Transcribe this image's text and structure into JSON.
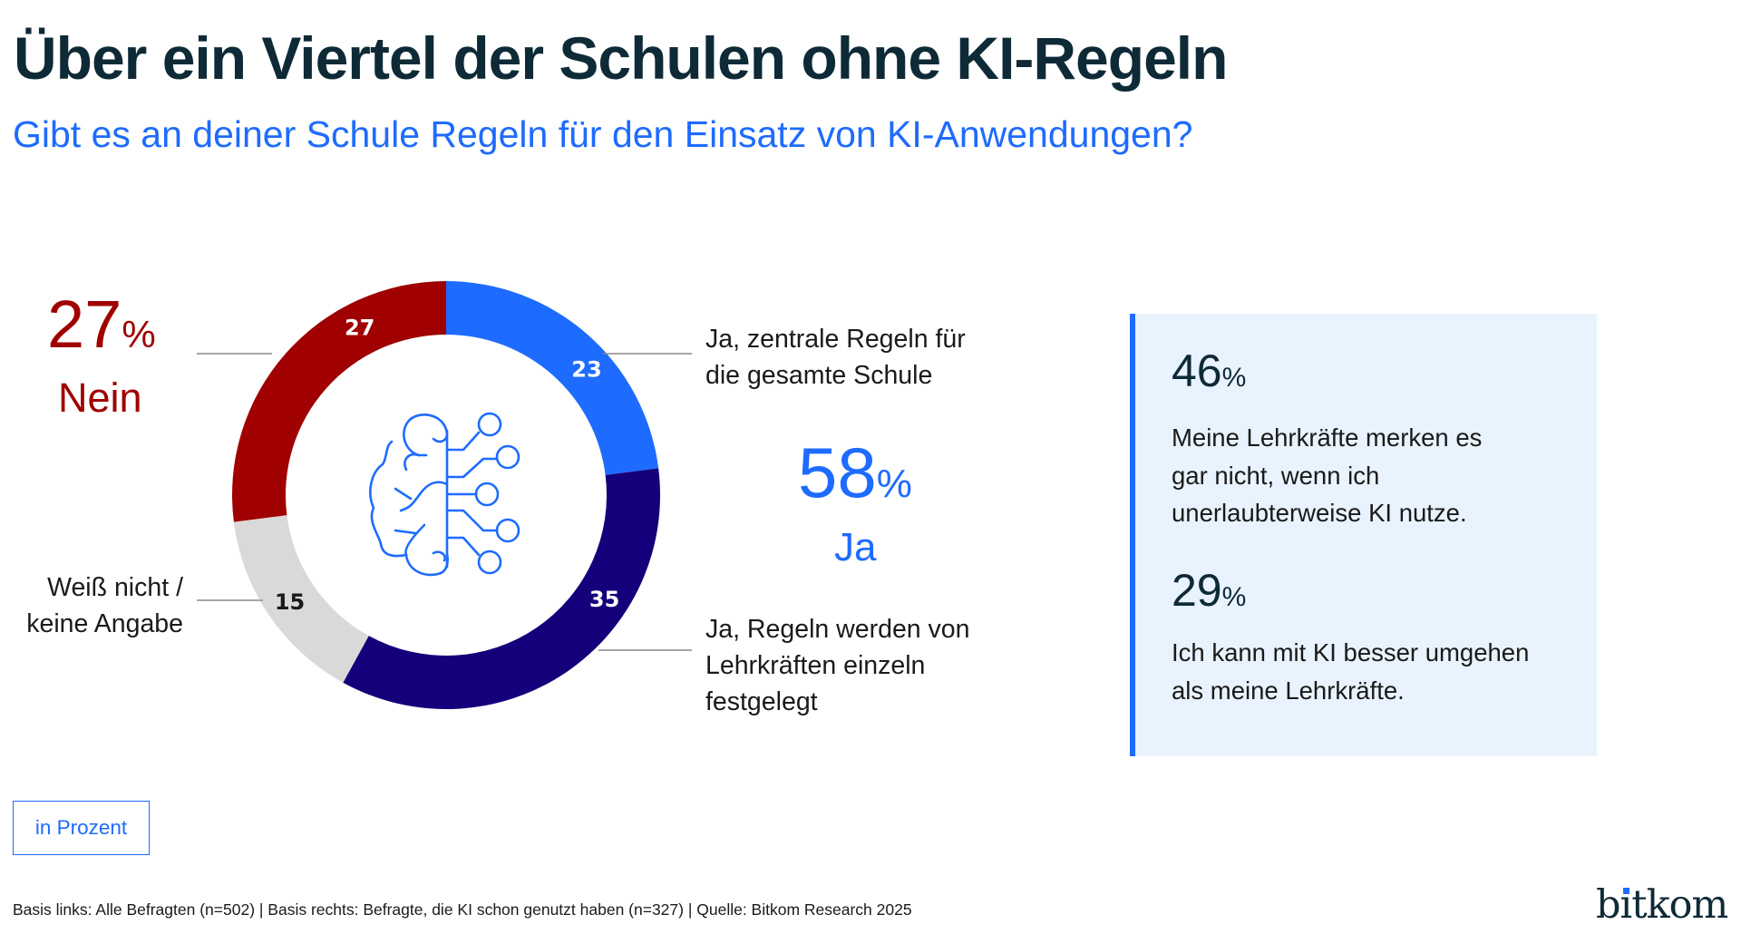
{
  "header": {
    "title": "Über ein Viertel der Schulen ohne KI-Regeln",
    "subtitle": "Gibt es an deiner Schule Regeln für den Einsatz von KI-Anwendungen?"
  },
  "colors": {
    "title": "#0e2a36",
    "accent_blue": "#1e6bff",
    "navy": "#14007a",
    "red": "#a00000",
    "grey": "#d9d9d9",
    "panel_bg": "#e8f3fd"
  },
  "chart_data": {
    "type": "pie",
    "variant": "donut",
    "title": "Gibt es an deiner Schule Regeln für den Einsatz von KI-Anwendungen?",
    "unit": "in Prozent",
    "start": "top",
    "direction": "clockwise",
    "slices": [
      {
        "key": "ja_zentral",
        "label": "Ja, zentrale Regeln für die gesamte Schule",
        "value": 23,
        "value_label": "23",
        "color": "#1e6bff",
        "label_color": "#ffffff"
      },
      {
        "key": "ja_lehrkraefte",
        "label": "Ja, Regeln werden von Lehrkräften einzeln festgelegt",
        "value": 35,
        "value_label": "35",
        "color": "#14007a",
        "label_color": "#ffffff"
      },
      {
        "key": "weiss_nicht",
        "label": "Weiß nicht / keine Angabe",
        "value": 15,
        "value_label": "15",
        "color": "#d9d9d9",
        "label_color": "#1a1a1a"
      },
      {
        "key": "nein",
        "label": "Nein",
        "value": 27,
        "value_label": "27",
        "color": "#a00000",
        "label_color": "#ffffff"
      }
    ],
    "summary": [
      {
        "label": "Nein",
        "value": 27,
        "display": "27",
        "unit": "%"
      },
      {
        "label": "Ja",
        "value": 58,
        "display": "58",
        "unit": "%"
      }
    ],
    "center_icon": "brain-circuit-icon"
  },
  "left_summary": {
    "value": "27",
    "unit": "%",
    "label": "Nein"
  },
  "right_summary": {
    "value": "58",
    "unit": "%",
    "label": "Ja"
  },
  "segment_labels": {
    "ja_zentral": [
      "Ja, zentrale Regeln für",
      "die gesamte Schule"
    ],
    "ja_lehrkraefte": [
      "Ja, Regeln werden von",
      "Lehrkräften einzeln",
      "festgelegt"
    ],
    "weiss_nicht": [
      "Weiß nicht /",
      "keine Angabe"
    ]
  },
  "panel": {
    "items": [
      {
        "value": "46",
        "unit": "%",
        "lines": [
          "Meine Lehrkräfte merken es",
          "gar nicht, wenn ich",
          "unerlaubterweise KI nutze."
        ]
      },
      {
        "value": "29",
        "unit": "%",
        "lines": [
          "Ich kann mit KI besser umgehen",
          "als meine Lehrkräfte."
        ]
      }
    ]
  },
  "unit_label": "in Prozent",
  "footer": "Basis links: Alle Befragten (n=502) | Basis rechts: Befragte, die KI schon genutzt haben (n=327) | Quelle: Bitkom Research 2025",
  "logo": {
    "before_dot": "b",
    "dotted": "ı",
    "after_dot": "tkom",
    "text": "bitkom"
  }
}
